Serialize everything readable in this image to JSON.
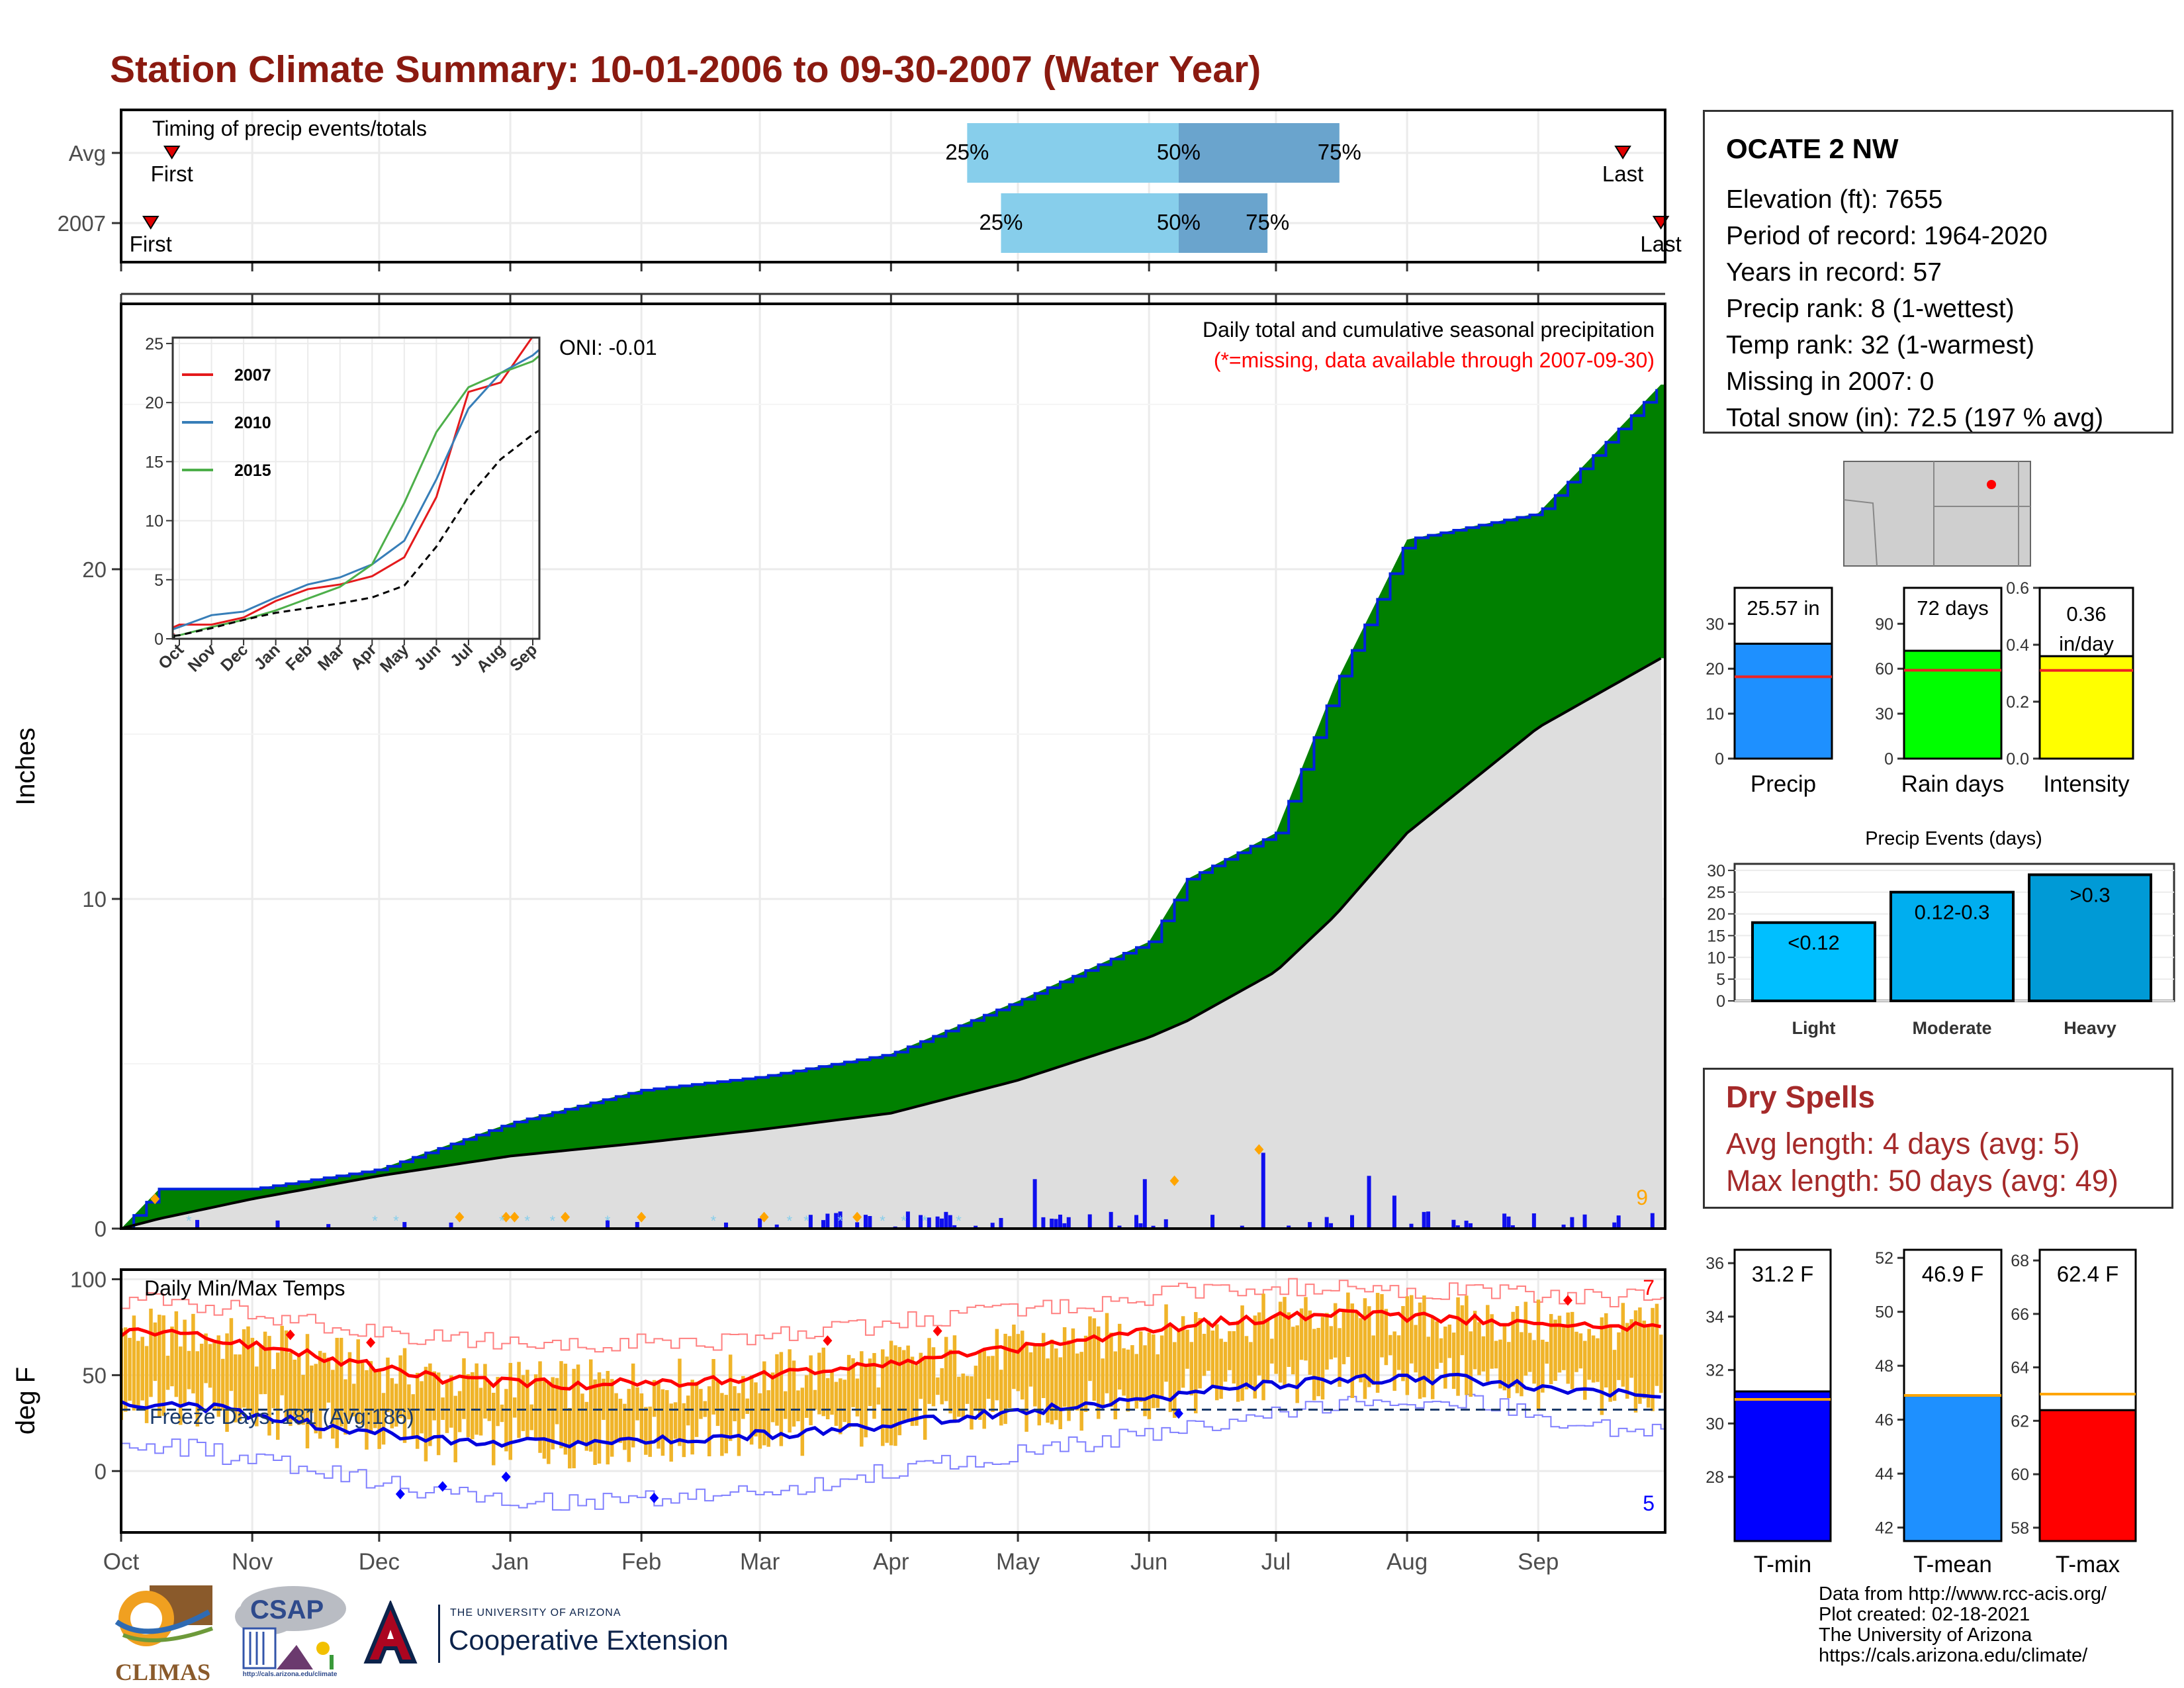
{
  "title": "Station Climate Summary: 10-01-2006 to 09-30-2007 (Water Year)",
  "colors": {
    "title": "#8b1a10",
    "green": "#008000",
    "brown": "#7b4a12",
    "gray_fill": "#dedede",
    "blue_line": "#0000cc",
    "tmax_line": "#ff0000",
    "bars": "#f0b429",
    "q_light": "#87ceeb",
    "q_dark": "#6aa4cd",
    "precip_bar": "#1e90ff",
    "rain_bar": "#00ff00",
    "intens_bar": "#ffff00",
    "light_ev": "#00bfff",
    "mod_ev": "#00aeef",
    "heavy_ev": "#009ad6",
    "dry_text": "#a52a2a"
  },
  "months": [
    "Oct",
    "Nov",
    "Dec",
    "Jan",
    "Feb",
    "Mar",
    "Apr",
    "May",
    "Jun",
    "Jul",
    "Aug",
    "Sep"
  ],
  "timing": {
    "label": "Timing of precip events/totals",
    "rows": [
      {
        "name": "Avg",
        "first_label": "First",
        "last_label": "Last",
        "q25": "25%",
        "q50": "50%",
        "q75": "75%",
        "first_day": 12,
        "last_day": 355,
        "q25_day": 200,
        "q50_day": 250,
        "q75_day": 288
      },
      {
        "name": "2007",
        "first_label": "First",
        "last_label": "Last",
        "q25": "25%",
        "q50": "50%",
        "q75": "75%",
        "first_day": 7,
        "last_day": 364,
        "q25_day": 208,
        "q50_day": 250,
        "q75_day": 271
      }
    ]
  },
  "precip_panel": {
    "ylabel": "Inches",
    "header": "Daily total and cumulative seasonal precipitation",
    "missing_note": "(*=missing, data available through 2007-09-30)",
    "oni": "ONI: -0.01",
    "count_label": "9",
    "yticks": [
      "0",
      "10",
      "20"
    ]
  },
  "inset": {
    "yticks": [
      "0",
      "5",
      "10",
      "15",
      "20",
      "25"
    ],
    "months": [
      "Oct",
      "Nov",
      "Dec",
      "Jan",
      "Feb",
      "Mar",
      "Apr",
      "May",
      "Jun",
      "Jul",
      "Aug",
      "Sep"
    ],
    "legend": [
      {
        "name": "2007",
        "color": "#e41a1c"
      },
      {
        "name": "2010",
        "color": "#377eb8"
      },
      {
        "name": "2015",
        "color": "#4daf4a"
      }
    ]
  },
  "temp_panel": {
    "ylabel": "deg F",
    "label": "Daily Min/Max Temps",
    "freeze": "Freeze Days: 181 (Avg:186)",
    "hot_count": "7",
    "cold_count": "5",
    "yticks": [
      "0",
      "50",
      "100"
    ]
  },
  "station": {
    "name": "OCATE 2 NW",
    "lines": [
      "Elevation (ft): 7655",
      "Period of record: 1964-2020",
      "Years in record: 57",
      "Precip rank: 8 (1-wettest)",
      "Temp rank: 32 (1-warmest)",
      "Missing in 2007: 0",
      "Total snow (in): 72.5 (197 % avg)"
    ]
  },
  "mini_bars": [
    {
      "label": "Precip",
      "value_text": "25.57 in",
      "value": 25.57,
      "avg": 18.2,
      "ymax": 38,
      "ticks": [
        "0",
        "10",
        "20",
        "30"
      ],
      "tickvals": [
        0,
        10,
        20,
        30
      ]
    },
    {
      "label": "Rain days",
      "value_text": "72 days",
      "value": 72,
      "avg": 59,
      "ymax": 114,
      "ticks": [
        "0",
        "30",
        "60",
        "90"
      ],
      "tickvals": [
        0,
        30,
        60,
        90
      ]
    },
    {
      "label": "Intensity",
      "value_text": "0.36 in/day",
      "value": 0.36,
      "avg": 0.31,
      "ymax": 0.6,
      "ticks": [
        "0.0",
        "0.2",
        "0.4",
        "0.6"
      ],
      "tickvals": [
        0,
        0.2,
        0.4,
        0.6
      ]
    }
  ],
  "events": {
    "title": "Precip Events (days)",
    "yticks": [
      "0",
      "5",
      "10",
      "15",
      "20",
      "25",
      "30"
    ],
    "bars": [
      {
        "label": "Light",
        "range": "<0.12",
        "value": 18
      },
      {
        "label": "Moderate",
        "range": "0.12-0.3",
        "value": 25
      },
      {
        "label": "Heavy",
        "range": ">0.3",
        "value": 29
      }
    ]
  },
  "dry_spells": {
    "title": "Dry Spells",
    "avg": "Avg length: 4 days (avg: 5)",
    "max": "Max length: 50 days (avg: 49)"
  },
  "temp_bars": [
    {
      "label": "T-min",
      "value_text": "31.2 F",
      "value": 31.2,
      "avg": 30.9,
      "ymin": 25.6,
      "ymax": 36.5,
      "ticks": [
        "28",
        "30",
        "32",
        "34",
        "36"
      ],
      "tickvals": [
        28,
        30,
        32,
        34,
        36
      ]
    },
    {
      "label": "T-mean",
      "value_text": "46.9 F",
      "value": 46.9,
      "avg": 46.9,
      "ymin": 41.5,
      "ymax": 52.3,
      "ticks": [
        "42",
        "44",
        "46",
        "48",
        "50",
        "52"
      ],
      "tickvals": [
        42,
        44,
        46,
        48,
        50,
        52
      ]
    },
    {
      "label": "T-max",
      "value_text": "62.4 F",
      "value": 62.4,
      "avg": 63.0,
      "ymin": 57.5,
      "ymax": 68.4,
      "ticks": [
        "58",
        "60",
        "62",
        "64",
        "66",
        "68"
      ],
      "tickvals": [
        58,
        60,
        62,
        64,
        66,
        68
      ]
    }
  ],
  "logos": {
    "climas": "CLIMAS",
    "csap": "CSAP",
    "ua_small": "THE UNIVERSITY OF ARIZONA",
    "ua_big": "Cooperative Extension",
    "csap_url": "http://cals.arizona.edu/climate"
  },
  "credits": [
    "Data from http://www.rcc-acis.org/",
    "Plot created: 02-18-2021",
    "The University of Arizona",
    "https://cals.arizona.edu/climate/"
  ],
  "chart_data": [
    {
      "type": "area",
      "title": "Daily total and cumulative seasonal precipitation",
      "ylabel": "Inches",
      "ylim": [
        0,
        28
      ],
      "x": [
        "2006-10-01",
        "2006-10-10",
        "2006-11-01",
        "2006-12-01",
        "2007-01-01",
        "2007-02-01",
        "2007-03-01",
        "2007-04-01",
        "2007-05-01",
        "2007-06-01",
        "2007-06-10",
        "2007-07-01",
        "2007-07-15",
        "2007-08-01",
        "2007-09-01",
        "2007-09-30"
      ],
      "series": [
        {
          "name": "2007",
          "values": [
            0,
            1.2,
            1.2,
            1.8,
            3.2,
            4.2,
            4.6,
            5.3,
            6.9,
            8.7,
            10.6,
            12.0,
            16.5,
            20.9,
            21.7,
            25.6
          ]
        },
        {
          "name": "Avg",
          "values": [
            0,
            0.3,
            0.9,
            1.6,
            2.2,
            2.6,
            3.0,
            3.5,
            4.5,
            5.8,
            6.3,
            7.8,
            9.5,
            12.0,
            15.2,
            17.3
          ]
        }
      ],
      "daily_events_in": [
        1.2,
        0.8,
        0.3,
        1.0,
        1.1,
        0.9,
        1.5,
        2.3,
        1.5,
        0.6
      ]
    },
    {
      "type": "line",
      "title": "Daily Min/Max Temps",
      "ylabel": "deg F",
      "ylim": [
        -32,
        105
      ],
      "x": [
        "Oct",
        "Nov",
        "Dec",
        "Jan",
        "Feb",
        "Mar",
        "Apr",
        "May",
        "Jun",
        "Jul",
        "Aug",
        "Sep"
      ],
      "series": [
        {
          "name": "Avg max",
          "values": [
            72,
            60,
            48,
            45,
            47,
            53,
            60,
            68,
            78,
            82,
            79,
            75
          ]
        },
        {
          "name": "Avg min",
          "values": [
            35,
            24,
            16,
            14,
            17,
            21,
            28,
            34,
            42,
            48,
            48,
            40
          ]
        },
        {
          "name": "Record high",
          "values": [
            88,
            77,
            68,
            66,
            67,
            73,
            81,
            87,
            95,
            96,
            94,
            90
          ]
        },
        {
          "name": "Record low",
          "values": [
            12,
            0,
            -12,
            -17,
            -12,
            -6,
            5,
            14,
            26,
            35,
            37,
            22
          ]
        }
      ],
      "freeze_line": 32
    },
    {
      "type": "line",
      "title": "inset cumulative precipitation",
      "ylim": [
        0,
        25.5
      ],
      "x": [
        "Oct",
        "Nov",
        "Dec",
        "Jan",
        "Feb",
        "Mar",
        "Apr",
        "May",
        "Jun",
        "Jul",
        "Aug",
        "Sep"
      ],
      "series": [
        {
          "name": "2007",
          "values": [
            1.2,
            1.2,
            1.8,
            3.2,
            4.2,
            4.6,
            5.3,
            6.9,
            12.0,
            20.9,
            21.7,
            25.6
          ]
        },
        {
          "name": "2010",
          "values": [
            1.0,
            2.0,
            2.3,
            3.5,
            4.6,
            5.2,
            6.3,
            8.3,
            13.5,
            19.5,
            22.5,
            24.0
          ]
        },
        {
          "name": "2015",
          "values": [
            0.3,
            1.0,
            1.6,
            2.4,
            3.4,
            4.4,
            6.3,
            11.5,
            17.5,
            21.3,
            22.5,
            23.5
          ]
        },
        {
          "name": "Avg",
          "values": [
            0.3,
            0.9,
            1.6,
            2.2,
            2.6,
            3.0,
            3.5,
            4.5,
            7.8,
            12.0,
            15.2,
            17.3
          ]
        }
      ]
    },
    {
      "type": "bar",
      "title": "Precip Events (days)",
      "categories": [
        "Light",
        "Moderate",
        "Heavy"
      ],
      "values": [
        18,
        25,
        29
      ],
      "ylim": [
        0,
        30
      ]
    }
  ]
}
